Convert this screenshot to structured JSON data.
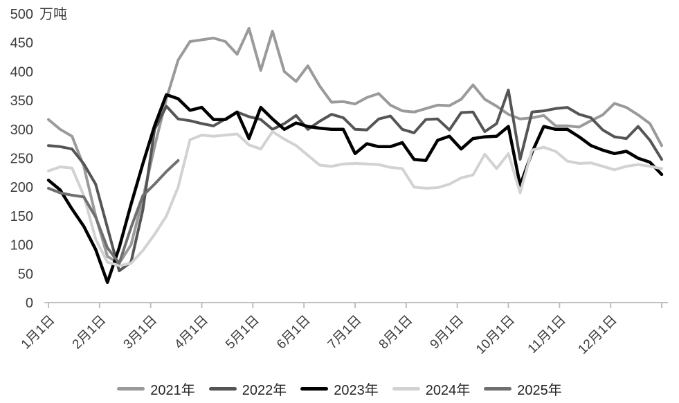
{
  "chart_data": {
    "type": "line",
    "title": "",
    "unit_label": "万吨",
    "legend_position": "bottom",
    "grid": false,
    "y_axis": {
      "min": 0,
      "max": 500,
      "step": 50,
      "ticks": [
        0,
        50,
        100,
        150,
        200,
        250,
        300,
        350,
        400,
        450,
        500
      ]
    },
    "x_axis": {
      "labels": [
        "1月1日",
        "2月1日",
        "3月1日",
        "4月1日",
        "5月1日",
        "6月1日",
        "7月1日",
        "8月1日",
        "9月1日",
        "10月1日",
        "11月1日",
        "12月1日"
      ]
    },
    "sampling": "weekly",
    "series": [
      {
        "name": "2021年",
        "color": "#9a9a9a",
        "values": [
          317,
          300,
          288,
          236,
          150,
          80,
          68,
          100,
          180,
          270,
          353,
          420,
          452,
          455,
          458,
          452,
          430,
          475,
          402,
          470,
          400,
          383,
          410,
          375,
          347,
          348,
          344,
          355,
          362,
          342,
          332,
          330,
          336,
          342,
          341,
          352,
          377,
          352,
          340,
          326,
          318,
          320,
          324,
          306,
          306,
          304,
          315,
          325,
          345,
          338,
          325,
          310,
          272
        ]
      },
      {
        "name": "2022年",
        "color": "#555555",
        "values": [
          272,
          270,
          266,
          240,
          205,
          130,
          55,
          70,
          160,
          300,
          340,
          318,
          315,
          310,
          306,
          318,
          330,
          322,
          317,
          300,
          310,
          324,
          300,
          314,
          326,
          320,
          300,
          299,
          318,
          323,
          300,
          294,
          317,
          318,
          299,
          329,
          330,
          296,
          310,
          368,
          248,
          330,
          332,
          336,
          338,
          326,
          320,
          299,
          287,
          284,
          305,
          281,
          248
        ]
      },
      {
        "name": "2023年",
        "color": "#000000",
        "values": [
          212,
          195,
          162,
          132,
          92,
          35,
          95,
          170,
          240,
          306,
          360,
          353,
          333,
          338,
          317,
          317,
          330,
          284,
          338,
          318,
          300,
          311,
          305,
          302,
          300,
          300,
          258,
          275,
          270,
          270,
          277,
          248,
          246,
          281,
          288,
          266,
          284,
          287,
          288,
          305,
          203,
          260,
          305,
          300,
          300,
          287,
          272,
          264,
          258,
          262,
          250,
          243,
          222
        ]
      },
      {
        "name": "2024年",
        "color": "#d2d2d2",
        "values": [
          228,
          235,
          233,
          185,
          110,
          70,
          64,
          68,
          90,
          118,
          150,
          200,
          282,
          290,
          288,
          290,
          292,
          273,
          266,
          296,
          283,
          272,
          255,
          238,
          236,
          240,
          241,
          240,
          239,
          234,
          232,
          200,
          198,
          199,
          205,
          216,
          221,
          257,
          232,
          258,
          190,
          264,
          269,
          262,
          245,
          241,
          242,
          236,
          230,
          236,
          239,
          236,
          232
        ]
      },
      {
        "name": "2025年",
        "color": "#6f6f6f",
        "values": [
          198,
          190,
          186,
          183,
          148,
          95,
          68,
          130,
          185,
          205,
          227,
          246
        ]
      }
    ]
  }
}
